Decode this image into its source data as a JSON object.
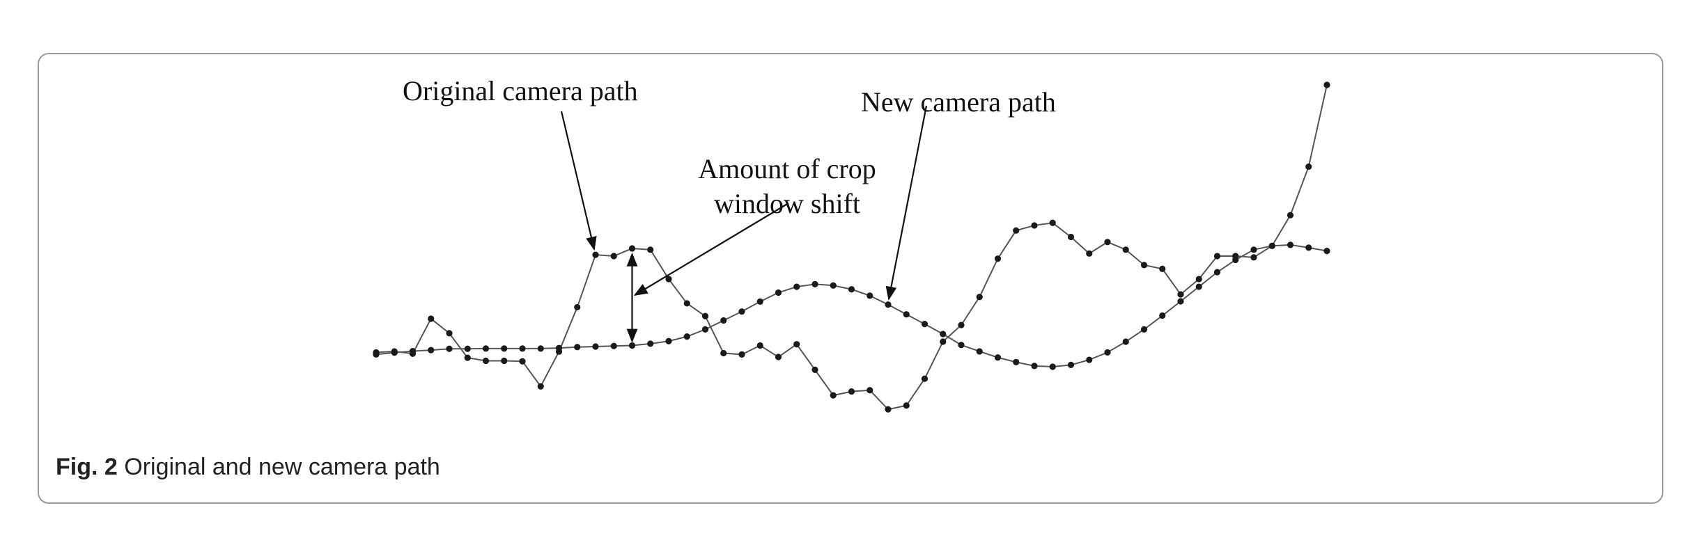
{
  "caption": {
    "label": "Fig. 2",
    "text": "Original and new camera path"
  },
  "chart_data": {
    "type": "line",
    "title": "",
    "xlabel": "",
    "ylabel": "",
    "axes_visible": false,
    "grid": false,
    "marker": "dot",
    "line_color": "#555555",
    "marker_color": "#1a1a1a",
    "x": [
      0,
      1,
      2,
      3,
      4,
      5,
      6,
      7,
      8,
      9,
      10,
      11,
      12,
      13,
      14,
      15,
      16,
      17,
      18,
      19,
      20,
      21,
      22,
      23,
      24,
      25,
      26,
      27,
      28,
      29,
      30,
      31,
      32,
      33,
      34,
      35,
      36,
      37,
      38,
      39,
      40,
      41,
      42,
      43,
      44,
      45,
      46,
      47,
      48,
      49,
      50,
      51,
      52
    ],
    "series": [
      {
        "name": "Original camera path",
        "values": [
          0.23,
          0.27,
          0.18,
          1.55,
          0.98,
          0.02,
          -0.1,
          -0.1,
          -0.12,
          -1.1,
          0.26,
          2.0,
          4.05,
          4.0,
          4.3,
          4.25,
          3.1,
          2.15,
          1.65,
          0.2,
          0.15,
          0.5,
          0.05,
          0.55,
          -0.45,
          -1.45,
          -1.3,
          -1.25,
          -2.0,
          -1.85,
          -0.8,
          0.65,
          1.3,
          2.4,
          3.9,
          5.0,
          5.2,
          5.3,
          4.75,
          4.1,
          4.55,
          4.25,
          3.65,
          3.5,
          2.5,
          3.1,
          4.0,
          4.0,
          3.95,
          4.4,
          5.6,
          7.5,
          10.7
        ]
      },
      {
        "name": "New camera path",
        "values": [
          0.15,
          0.22,
          0.28,
          0.32,
          0.37,
          0.37,
          0.38,
          0.38,
          0.38,
          0.38,
          0.4,
          0.44,
          0.46,
          0.48,
          0.5,
          0.57,
          0.67,
          0.85,
          1.13,
          1.48,
          1.83,
          2.22,
          2.57,
          2.8,
          2.9,
          2.85,
          2.7,
          2.45,
          2.1,
          1.72,
          1.34,
          0.95,
          0.52,
          0.27,
          0.03,
          -0.15,
          -0.3,
          -0.33,
          -0.26,
          -0.06,
          0.23,
          0.65,
          1.13,
          1.67,
          2.23,
          2.8,
          3.37,
          3.85,
          4.25,
          4.4,
          4.44,
          4.33,
          4.2
        ]
      }
    ],
    "ylim": [
      -3,
      11
    ],
    "xlim": [
      0,
      52
    ],
    "annotations": [
      {
        "text": "Original camera path",
        "points_to_series": "Original camera path",
        "x": 12
      },
      {
        "text": "New camera path",
        "points_to_series": "New camera path",
        "x": 28
      },
      {
        "text": "Amount of crop\nwindow shift",
        "points_to_x": 14,
        "between_series": [
          "Original camera path",
          "New camera path"
        ]
      }
    ]
  },
  "labels": {
    "original": "Original camera path",
    "new": "New camera path",
    "crop_line1": "Amount of crop",
    "crop_line2": "window shift"
  }
}
